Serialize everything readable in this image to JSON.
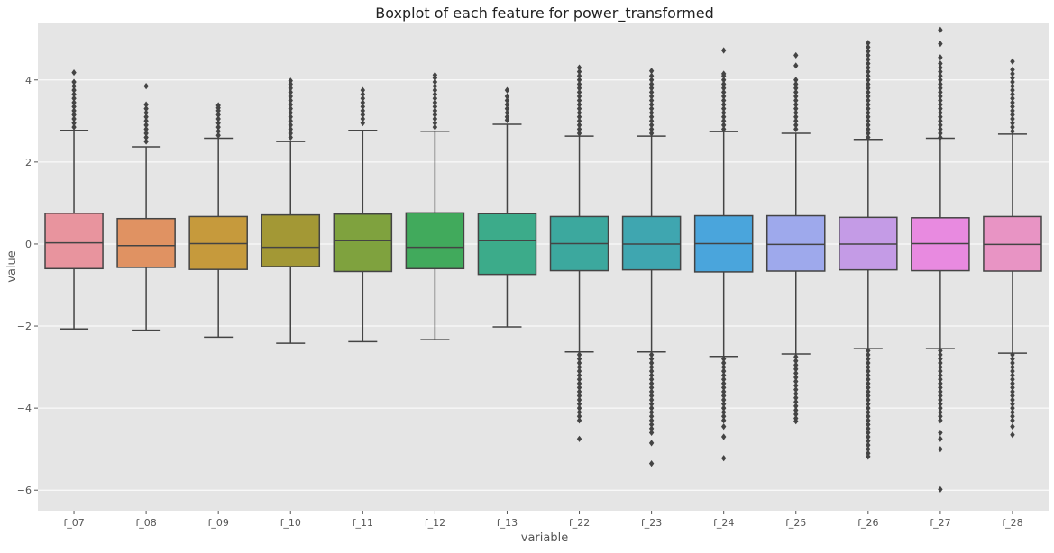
{
  "chart_data": {
    "type": "boxplot",
    "title": "Boxplot of each feature for power_transformed",
    "xlabel": "variable",
    "ylabel": "value",
    "ylim": [
      -6.5,
      5.4
    ],
    "yticks": [
      -6,
      -4,
      -2,
      0,
      2,
      4
    ],
    "grid": true,
    "background": "#e5e5e5",
    "grid_color": "#ffffff",
    "line_color": "#444444",
    "categories": [
      "f_07",
      "f_08",
      "f_09",
      "f_10",
      "f_11",
      "f_12",
      "f_13",
      "f_22",
      "f_23",
      "f_24",
      "f_25",
      "f_26",
      "f_27",
      "f_28"
    ],
    "boxes": [
      {
        "q1": -0.6,
        "median": 0.03,
        "q3": 0.75,
        "whisker_low": -2.07,
        "whisker_high": 2.77,
        "outliers_low": [],
        "outliers_high": [
          2.85,
          2.95,
          3.05,
          3.15,
          3.25,
          3.35,
          3.45,
          3.55,
          3.65,
          3.75,
          3.85,
          3.95,
          4.18
        ],
        "color": "#e8949e"
      },
      {
        "q1": -0.57,
        "median": -0.04,
        "q3": 0.62,
        "whisker_low": -2.1,
        "whisker_high": 2.37,
        "outliers_low": [],
        "outliers_high": [
          2.5,
          2.6,
          2.7,
          2.8,
          2.9,
          3.0,
          3.1,
          3.2,
          3.3,
          3.4,
          3.85
        ],
        "color": "#e09262"
      },
      {
        "q1": -0.62,
        "median": 0.01,
        "q3": 0.67,
        "whisker_low": -2.27,
        "whisker_high": 2.58,
        "outliers_low": [],
        "outliers_high": [
          2.65,
          2.75,
          2.85,
          2.95,
          3.05,
          3.15,
          3.25,
          3.32,
          3.38
        ],
        "color": "#c69a3c"
      },
      {
        "q1": -0.55,
        "median": -0.08,
        "q3": 0.71,
        "whisker_low": -2.42,
        "whisker_high": 2.5,
        "outliers_low": [],
        "outliers_high": [
          2.6,
          2.7,
          2.8,
          2.9,
          3.0,
          3.1,
          3.2,
          3.3,
          3.4,
          3.5,
          3.6,
          3.7,
          3.8,
          3.9,
          3.98
        ],
        "color": "#a39835"
      },
      {
        "q1": -0.67,
        "median": 0.08,
        "q3": 0.73,
        "whisker_low": -2.38,
        "whisker_high": 2.77,
        "outliers_low": [],
        "outliers_high": [
          2.95,
          3.05,
          3.15,
          3.25,
          3.35,
          3.45,
          3.55,
          3.65,
          3.75
        ],
        "color": "#7fa23e"
      },
      {
        "q1": -0.6,
        "median": -0.08,
        "q3": 0.76,
        "whisker_low": -2.33,
        "whisker_high": 2.75,
        "outliers_low": [],
        "outliers_high": [
          2.85,
          2.95,
          3.05,
          3.15,
          3.25,
          3.35,
          3.45,
          3.55,
          3.65,
          3.75,
          3.85,
          3.95,
          4.05,
          4.12
        ],
        "color": "#41aa5c"
      },
      {
        "q1": -0.74,
        "median": 0.08,
        "q3": 0.74,
        "whisker_low": -2.02,
        "whisker_high": 2.92,
        "outliers_low": [],
        "outliers_high": [
          3.02,
          3.1,
          3.2,
          3.3,
          3.4,
          3.5,
          3.6,
          3.75
        ],
        "color": "#3cab8a"
      },
      {
        "q1": -0.65,
        "median": 0.01,
        "q3": 0.67,
        "whisker_low": -2.63,
        "whisker_high": 2.63,
        "outliers_low": [
          -2.7,
          -2.8,
          -2.9,
          -3.0,
          -3.1,
          -3.2,
          -3.3,
          -3.4,
          -3.5,
          -3.6,
          -3.7,
          -3.8,
          -3.9,
          -4.0,
          -4.1,
          -4.2,
          -4.3,
          -4.75
        ],
        "outliers_high": [
          2.7,
          2.8,
          2.9,
          3.0,
          3.1,
          3.2,
          3.3,
          3.4,
          3.5,
          3.6,
          3.7,
          3.8,
          3.9,
          4.0,
          4.1,
          4.2,
          4.3
        ],
        "color": "#3ca89e"
      },
      {
        "q1": -0.63,
        "median": 0.0,
        "q3": 0.67,
        "whisker_low": -2.63,
        "whisker_high": 2.63,
        "outliers_low": [
          -2.7,
          -2.8,
          -2.9,
          -3.0,
          -3.1,
          -3.2,
          -3.3,
          -3.4,
          -3.5,
          -3.6,
          -3.7,
          -3.8,
          -3.9,
          -4.0,
          -4.1,
          -4.2,
          -4.3,
          -4.4,
          -4.5,
          -4.6,
          -4.85,
          -5.35
        ],
        "outliers_high": [
          2.7,
          2.8,
          2.9,
          3.0,
          3.1,
          3.2,
          3.3,
          3.4,
          3.5,
          3.6,
          3.7,
          3.8,
          3.9,
          4.0,
          4.1,
          4.22
        ],
        "color": "#3fa6b0"
      },
      {
        "q1": -0.68,
        "median": 0.01,
        "q3": 0.69,
        "whisker_low": -2.74,
        "whisker_high": 2.74,
        "outliers_low": [
          -2.8,
          -2.9,
          -3.0,
          -3.1,
          -3.2,
          -3.3,
          -3.4,
          -3.5,
          -3.6,
          -3.7,
          -3.8,
          -3.9,
          -4.0,
          -4.1,
          -4.2,
          -4.3,
          -4.45,
          -4.7,
          -5.22
        ],
        "outliers_high": [
          2.8,
          2.9,
          3.0,
          3.1,
          3.2,
          3.3,
          3.4,
          3.5,
          3.6,
          3.7,
          3.8,
          3.9,
          4.0,
          4.1,
          4.15,
          4.72
        ],
        "color": "#4aa5dc"
      },
      {
        "q1": -0.66,
        "median": -0.01,
        "q3": 0.69,
        "whisker_low": -2.68,
        "whisker_high": 2.7,
        "outliers_low": [
          -2.75,
          -2.85,
          -2.95,
          -3.05,
          -3.15,
          -3.25,
          -3.35,
          -3.45,
          -3.55,
          -3.65,
          -3.75,
          -3.85,
          -3.95,
          -4.05,
          -4.15,
          -4.25,
          -4.32
        ],
        "outliers_high": [
          2.8,
          2.9,
          3.0,
          3.1,
          3.2,
          3.3,
          3.4,
          3.5,
          3.6,
          3.7,
          3.8,
          3.9,
          4.0,
          4.35,
          4.6
        ],
        "color": "#9ea9ec"
      },
      {
        "q1": -0.63,
        "median": 0.0,
        "q3": 0.65,
        "whisker_low": -2.55,
        "whisker_high": 2.55,
        "outliers_low": [
          -2.6,
          -2.7,
          -2.8,
          -2.9,
          -3.0,
          -3.1,
          -3.2,
          -3.3,
          -3.4,
          -3.5,
          -3.6,
          -3.7,
          -3.8,
          -3.9,
          -4.0,
          -4.1,
          -4.2,
          -4.3,
          -4.4,
          -4.5,
          -4.6,
          -4.7,
          -4.8,
          -4.9,
          -5.0,
          -5.1,
          -5.18
        ],
        "outliers_high": [
          2.6,
          2.7,
          2.8,
          2.9,
          3.0,
          3.1,
          3.2,
          3.3,
          3.4,
          3.5,
          3.6,
          3.7,
          3.8,
          3.9,
          4.0,
          4.1,
          4.2,
          4.3,
          4.4,
          4.5,
          4.6,
          4.7,
          4.8,
          4.9
        ],
        "color": "#c49be6"
      },
      {
        "q1": -0.65,
        "median": 0.01,
        "q3": 0.64,
        "whisker_low": -2.55,
        "whisker_high": 2.58,
        "outliers_low": [
          -2.6,
          -2.7,
          -2.8,
          -2.9,
          -3.0,
          -3.1,
          -3.2,
          -3.3,
          -3.4,
          -3.5,
          -3.6,
          -3.7,
          -3.8,
          -3.9,
          -4.0,
          -4.1,
          -4.2,
          -4.3,
          -4.6,
          -4.75,
          -5.0,
          -5.98
        ],
        "outliers_high": [
          2.6,
          2.7,
          2.8,
          2.9,
          3.0,
          3.1,
          3.2,
          3.3,
          3.4,
          3.5,
          3.6,
          3.7,
          3.8,
          3.9,
          4.0,
          4.1,
          4.2,
          4.3,
          4.4,
          4.55,
          4.88,
          5.22
        ],
        "color": "#e88ae0"
      },
      {
        "q1": -0.66,
        "median": -0.01,
        "q3": 0.67,
        "whisker_low": -2.66,
        "whisker_high": 2.68,
        "outliers_low": [
          -2.7,
          -2.8,
          -2.9,
          -3.0,
          -3.1,
          -3.2,
          -3.3,
          -3.4,
          -3.5,
          -3.6,
          -3.7,
          -3.8,
          -3.9,
          -4.0,
          -4.1,
          -4.2,
          -4.3,
          -4.45,
          -4.65
        ],
        "outliers_high": [
          2.75,
          2.85,
          2.95,
          3.05,
          3.15,
          3.25,
          3.35,
          3.45,
          3.55,
          3.65,
          3.75,
          3.85,
          3.95,
          4.05,
          4.15,
          4.25,
          4.45
        ],
        "color": "#e894c4"
      }
    ]
  }
}
